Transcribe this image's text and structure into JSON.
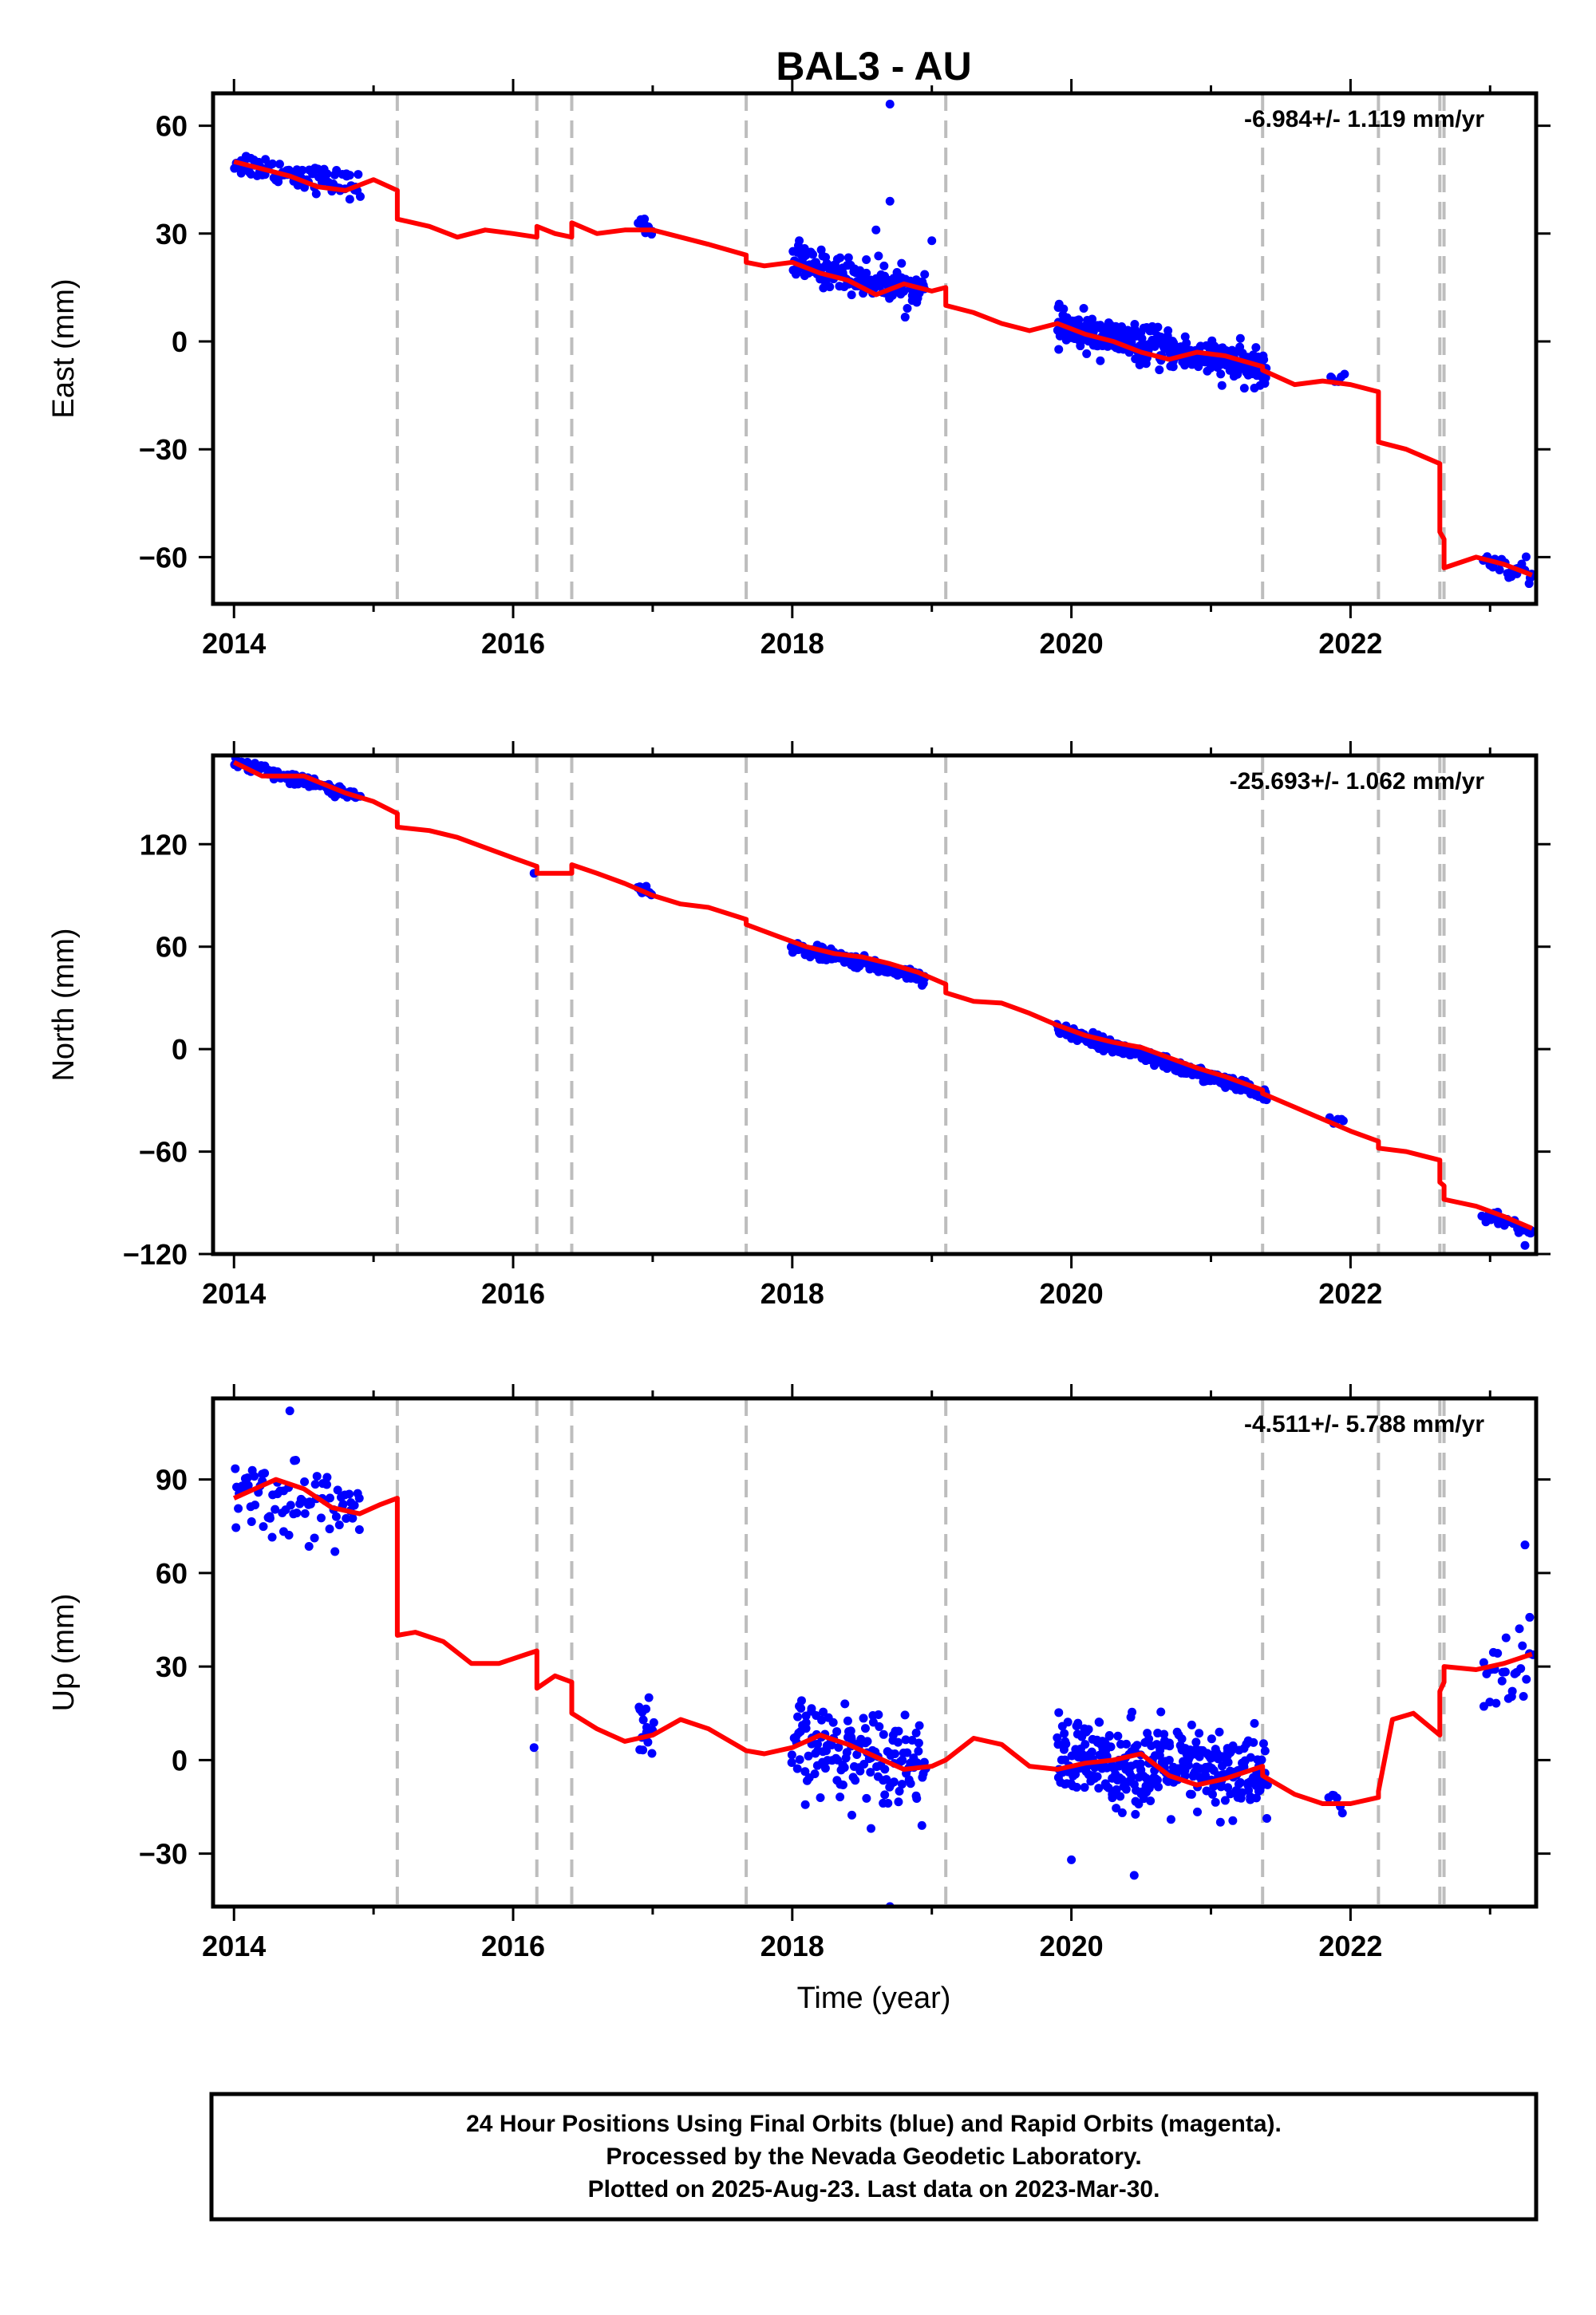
{
  "title": "BAL3 - AU",
  "xlabel": "Time (year)",
  "x_ticks": [
    2014,
    2016,
    2018,
    2020,
    2022
  ],
  "footer": {
    "line1": "24 Hour Positions Using Final Orbits (blue) and Rapid Orbits (magenta).",
    "line2": "Processed by the Nevada Geodetic Laboratory.",
    "line3": "Plotted on 2025-Aug-23. Last data on 2023-Mar-30."
  },
  "colors": {
    "data_points": "#0000ff",
    "model_line": "#ff0000",
    "equipment_change_lines": "#bdbdbd",
    "frame": "#000000"
  },
  "chart_data": [
    {
      "type": "scatter",
      "component": "East",
      "ylabel": "East (mm)",
      "rate_label": "-6.984+/- 1.119 mm/yr",
      "xlim": [
        2013.85,
        2023.33
      ],
      "ylim": [
        -73,
        69
      ],
      "y_ticks": [
        60,
        30,
        0,
        -30,
        -60
      ],
      "step_epochs": [
        2015.17,
        2016.17,
        2016.42,
        2017.67,
        2019.1,
        2021.37,
        2022.2,
        2022.64,
        2022.67
      ],
      "model_line": {
        "x": [
          2014.0,
          2014.2,
          2014.4,
          2014.6,
          2014.8,
          2015.0,
          2015.17,
          2015.17,
          2015.4,
          2015.6,
          2015.8,
          2016.0,
          2016.17,
          2016.17,
          2016.3,
          2016.42,
          2016.42,
          2016.6,
          2016.8,
          2017.0,
          2017.2,
          2017.4,
          2017.67,
          2017.67,
          2017.8,
          2018.0,
          2018.2,
          2018.4,
          2018.6,
          2018.8,
          2019.0,
          2019.1,
          2019.1,
          2019.3,
          2019.5,
          2019.7,
          2019.9,
          2020.1,
          2020.3,
          2020.5,
          2020.7,
          2020.9,
          2021.1,
          2021.37,
          2021.37,
          2021.6,
          2021.8,
          2022.0,
          2022.2,
          2022.2,
          2022.4,
          2022.64,
          2022.64,
          2022.67,
          2022.67,
          2022.9,
          2023.1,
          2023.3
        ],
        "y": [
          50,
          48,
          46,
          43,
          42,
          45,
          42,
          34,
          32,
          29,
          31,
          30,
          29,
          32,
          30,
          29,
          33,
          30,
          31,
          31,
          29,
          27,
          24,
          22,
          21,
          22,
          19,
          17,
          13,
          16,
          14,
          15,
          10,
          8,
          5,
          3,
          5,
          2,
          0,
          -3,
          -5,
          -3,
          -4,
          -7,
          -8,
          -12,
          -11,
          -12,
          -14,
          -28,
          -30,
          -34,
          -53,
          -55,
          -63,
          -60,
          -62,
          -65
        ]
      },
      "clusters": [
        {
          "x0": 2014.0,
          "x1": 2014.9,
          "base": [
            50,
            43
          ],
          "spread": 3,
          "n": 80
        },
        {
          "x0": 2016.9,
          "x1": 2017.0,
          "base": [
            33,
            31
          ],
          "spread": 2,
          "n": 16
        },
        {
          "x0": 2018.0,
          "x1": 2018.95,
          "base": [
            22,
            14
          ],
          "spread": 4,
          "n": 160
        },
        {
          "x0": 2019.9,
          "x1": 2021.4,
          "base": [
            4,
            -8
          ],
          "spread": 4,
          "n": 340
        },
        {
          "x0": 2021.85,
          "x1": 2021.95,
          "base": [
            -10,
            -12
          ],
          "spread": 2,
          "n": 6
        },
        {
          "x0": 2022.95,
          "x1": 2023.3,
          "base": [
            -60,
            -65
          ],
          "spread": 3,
          "n": 26
        }
      ],
      "outliers": [
        [
          2018.7,
          66
        ],
        [
          2018.7,
          39
        ],
        [
          2018.6,
          31
        ],
        [
          2019.0,
          28
        ],
        [
          2018.05,
          28
        ]
      ]
    },
    {
      "type": "scatter",
      "component": "North",
      "ylabel": "North (mm)",
      "rate_label": "-25.693+/- 1.062 mm/yr",
      "xlim": [
        2013.85,
        2023.33
      ],
      "ylim": [
        -120,
        172
      ],
      "y_ticks": [
        120,
        60,
        0,
        -60,
        -120
      ],
      "step_epochs": [
        2015.17,
        2016.17,
        2016.42,
        2017.67,
        2019.1,
        2021.37,
        2022.2,
        2022.64,
        2022.67
      ],
      "model_line": {
        "x": [
          2014.0,
          2014.2,
          2014.5,
          2014.8,
          2015.0,
          2015.17,
          2015.17,
          2015.4,
          2015.6,
          2015.8,
          2016.0,
          2016.17,
          2016.17,
          2016.42,
          2016.42,
          2016.6,
          2016.8,
          2017.0,
          2017.2,
          2017.4,
          2017.67,
          2017.67,
          2017.9,
          2018.1,
          2018.3,
          2018.5,
          2018.7,
          2018.9,
          2019.1,
          2019.1,
          2019.3,
          2019.5,
          2019.7,
          2019.9,
          2020.1,
          2020.3,
          2020.5,
          2020.7,
          2020.9,
          2021.1,
          2021.37,
          2021.37,
          2021.6,
          2021.8,
          2022.0,
          2022.2,
          2022.2,
          2022.4,
          2022.64,
          2022.64,
          2022.67,
          2022.67,
          2022.9,
          2023.1,
          2023.3
        ],
        "y": [
          168,
          160,
          160,
          150,
          145,
          138,
          130,
          128,
          124,
          118,
          112,
          107,
          103,
          103,
          108,
          103,
          97,
          90,
          85,
          83,
          76,
          73,
          66,
          60,
          56,
          54,
          50,
          45,
          38,
          33,
          28,
          27,
          21,
          14,
          8,
          4,
          1,
          -5,
          -11,
          -16,
          -24,
          -26,
          -34,
          -41,
          -48,
          -54,
          -58,
          -60,
          -65,
          -78,
          -80,
          -88,
          -92,
          -98,
          -105
        ]
      },
      "clusters": [
        {
          "x0": 2014.0,
          "x1": 2014.9,
          "base": [
            168,
            148
          ],
          "spread": 3,
          "n": 80
        },
        {
          "x0": 2016.9,
          "x1": 2017.0,
          "base": [
            94,
            90
          ],
          "spread": 2,
          "n": 16
        },
        {
          "x0": 2018.0,
          "x1": 2018.95,
          "base": [
            60,
            42
          ],
          "spread": 3,
          "n": 160
        },
        {
          "x0": 2019.9,
          "x1": 2021.4,
          "base": [
            12,
            -27
          ],
          "spread": 3,
          "n": 340
        },
        {
          "x0": 2021.85,
          "x1": 2021.95,
          "base": [
            -40,
            -44
          ],
          "spread": 2,
          "n": 6
        },
        {
          "x0": 2022.95,
          "x1": 2023.3,
          "base": [
            -96,
            -108
          ],
          "spread": 3,
          "n": 26
        }
      ],
      "outliers": [
        [
          2016.15,
          103
        ],
        [
          2023.25,
          -115
        ]
      ]
    },
    {
      "type": "scatter",
      "component": "Up",
      "ylabel": "Up (mm)",
      "rate_label": "-4.511+/- 5.788 mm/yr",
      "xlim": [
        2013.85,
        2023.33
      ],
      "ylim": [
        -47,
        116
      ],
      "y_ticks": [
        90,
        60,
        30,
        0,
        -30
      ],
      "step_epochs": [
        2015.17,
        2016.17,
        2016.42,
        2017.67,
        2019.1,
        2021.37,
        2022.2,
        2022.64,
        2022.67
      ],
      "model_line": {
        "x": [
          2014.0,
          2014.15,
          2014.3,
          2014.5,
          2014.7,
          2014.9,
          2015.05,
          2015.17,
          2015.17,
          2015.3,
          2015.5,
          2015.7,
          2015.9,
          2016.1,
          2016.17,
          2016.17,
          2016.3,
          2016.42,
          2016.42,
          2016.6,
          2016.8,
          2017.0,
          2017.2,
          2017.4,
          2017.67,
          2017.8,
          2018.0,
          2018.2,
          2018.4,
          2018.6,
          2018.8,
          2019.0,
          2019.1,
          2019.3,
          2019.5,
          2019.7,
          2019.9,
          2020.1,
          2020.3,
          2020.5,
          2020.7,
          2020.9,
          2021.1,
          2021.37,
          2021.37,
          2021.6,
          2021.8,
          2022.0,
          2022.2,
          2022.2,
          2022.3,
          2022.45,
          2022.64,
          2022.64,
          2022.67,
          2022.67,
          2022.9,
          2023.1,
          2023.3
        ],
        "y": [
          84,
          87,
          90,
          87,
          81,
          79,
          82,
          84,
          40,
          41,
          38,
          31,
          31,
          34,
          35,
          23,
          27,
          25,
          15,
          10,
          6,
          8,
          13,
          10,
          3,
          2,
          4,
          8,
          5,
          1,
          -3,
          -2,
          0,
          7,
          5,
          -2,
          -3,
          -1,
          0,
          2,
          -5,
          -8,
          -6,
          -2,
          -5,
          -11,
          -14,
          -14,
          -12,
          -10,
          13,
          15,
          8,
          22,
          25,
          30,
          29,
          31,
          34
        ]
      },
      "clusters": [
        {
          "x0": 2014.0,
          "x1": 2014.9,
          "base": [
            86,
            80
          ],
          "spread": 10,
          "n": 80
        },
        {
          "x0": 2016.9,
          "x1": 2017.0,
          "base": [
            8,
            6
          ],
          "spread": 10,
          "n": 16
        },
        {
          "x0": 2018.0,
          "x1": 2018.95,
          "base": [
            5,
            0
          ],
          "spread": 12,
          "n": 160
        },
        {
          "x0": 2019.9,
          "x1": 2021.4,
          "base": [
            0,
            -5
          ],
          "spread": 11,
          "n": 340
        },
        {
          "x0": 2021.85,
          "x1": 2021.95,
          "base": [
            -14,
            -16
          ],
          "spread": 6,
          "n": 6
        },
        {
          "x0": 2022.95,
          "x1": 2023.3,
          "base": [
            25,
            32
          ],
          "spread": 12,
          "n": 26
        }
      ],
      "outliers": [
        [
          2016.15,
          4
        ],
        [
          2018.7,
          -47
        ],
        [
          2023.25,
          69
        ],
        [
          2014.4,
          112
        ],
        [
          2020.45,
          -37
        ],
        [
          2020.0,
          -32
        ]
      ]
    }
  ]
}
